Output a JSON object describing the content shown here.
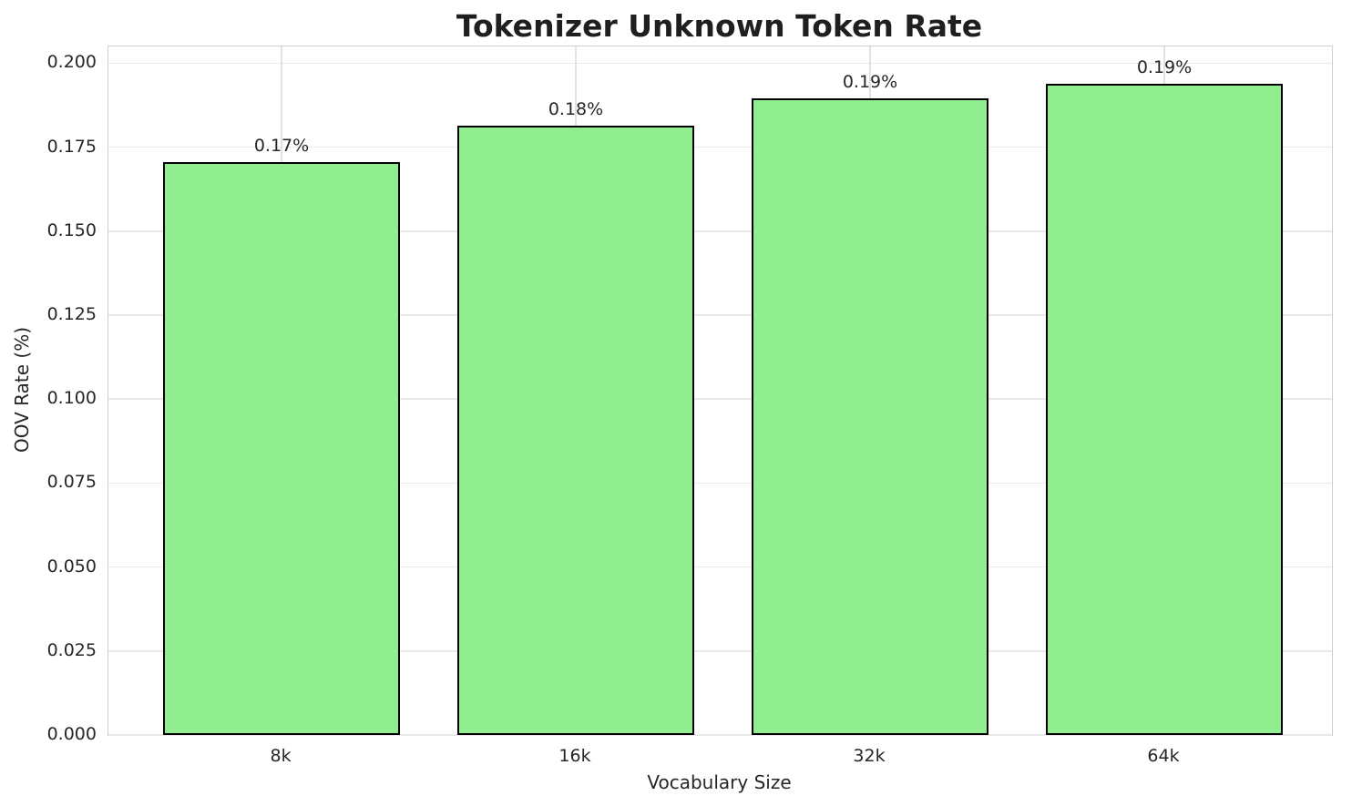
{
  "chart_data": {
    "type": "bar",
    "title": "Tokenizer Unknown Token Rate",
    "xlabel": "Vocabulary Size",
    "ylabel": "OOV Rate (%)",
    "categories": [
      "8k",
      "16k",
      "32k",
      "64k"
    ],
    "values": [
      0.1705,
      0.1815,
      0.1895,
      0.194
    ],
    "bar_labels": [
      "0.17%",
      "0.18%",
      "0.19%",
      "0.19%"
    ],
    "y_ticks": [
      0.0,
      0.025,
      0.05,
      0.075,
      0.1,
      0.125,
      0.15,
      0.175,
      0.2
    ],
    "y_tick_labels": [
      "0.000",
      "0.025",
      "0.050",
      "0.075",
      "0.100",
      "0.125",
      "0.150",
      "0.175",
      "0.200"
    ],
    "ylim": [
      0,
      0.205
    ],
    "grid": true,
    "legend": null,
    "bar_color": "#90EE90",
    "bar_edge_color": "#000000",
    "grid_color": "#e9e9e9",
    "axis_color": "#d0d0d0",
    "text_color": "#262626",
    "background": "#ffffff"
  }
}
